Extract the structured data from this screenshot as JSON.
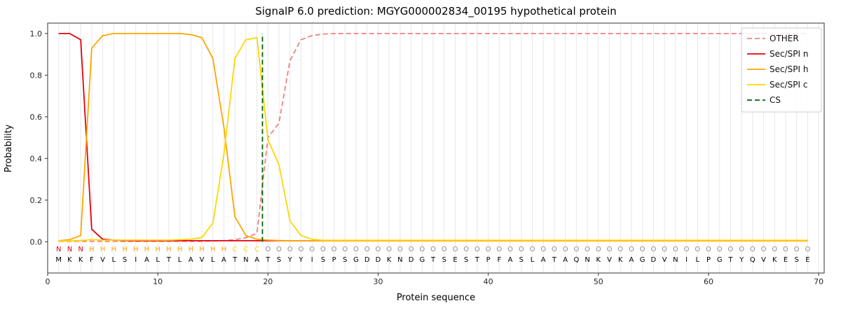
{
  "chart_data": {
    "type": "line",
    "title": "SignalP 6.0 prediction: MGYG000002834_00195 hypothetical protein",
    "xlabel": "Protein sequence",
    "ylabel": "Probability",
    "xlim": [
      0,
      70.5
    ],
    "ylim": [
      -0.15,
      1.05
    ],
    "xticks": [
      0,
      10,
      20,
      30,
      40,
      50,
      60,
      70
    ],
    "yticks": [
      0,
      0.2,
      0.4,
      0.6,
      0.8,
      1.0
    ],
    "grid": "vertical-per-residue",
    "grid_color": "#e7e7e7",
    "legend_position": "upper right",
    "x_start": 1,
    "series": [
      {
        "name": "OTHER",
        "color": "#f08080",
        "dash": true,
        "values": [
          0.002,
          0.002,
          0.002,
          0.002,
          0.002,
          0.002,
          0.002,
          0.002,
          0.002,
          0.002,
          0.002,
          0.002,
          0.002,
          0.002,
          0.004,
          0.006,
          0.01,
          0.02,
          0.04,
          0.5,
          0.57,
          0.87,
          0.97,
          0.99,
          0.997,
          1,
          1,
          1,
          1,
          1,
          1,
          1,
          1,
          1,
          1,
          1,
          1,
          1,
          1,
          1,
          1,
          1,
          1,
          1,
          1,
          1,
          1,
          1,
          1,
          1,
          1,
          1,
          1,
          1,
          1,
          1,
          1,
          1,
          1,
          1,
          1,
          1,
          1,
          1,
          1,
          1,
          1,
          1,
          1
        ]
      },
      {
        "name": "Sec/SPI n",
        "color": "#e8000b",
        "dash": false,
        "values": [
          1,
          1,
          0.97,
          0.06,
          0.012,
          0.008,
          0.006,
          0.005,
          0.005,
          0.005,
          0.005,
          0.005,
          0.005,
          0.005,
          0.005,
          0.005,
          0.005,
          0.005,
          0.005,
          0.005,
          0.005,
          0.005,
          0.005,
          0.005,
          0.005,
          0.005,
          0.005,
          0.005,
          0.005,
          0.005,
          0.005,
          0.005,
          0.005,
          0.005,
          0.005,
          0.005,
          0.005,
          0.005,
          0.005,
          0.005,
          0.005,
          0.005,
          0.005,
          0.005,
          0.005,
          0.005,
          0.005,
          0.005,
          0.005,
          0.005,
          0.005,
          0.005,
          0.005,
          0.005,
          0.005,
          0.005,
          0.005,
          0.005,
          0.005,
          0.005,
          0.005,
          0.005,
          0.005,
          0.005,
          0.005,
          0.005,
          0.005,
          0.005,
          0.005
        ]
      },
      {
        "name": "Sec/SPI h",
        "color": "#ffa500",
        "dash": false,
        "values": [
          0.005,
          0.01,
          0.03,
          0.93,
          0.99,
          1,
          1,
          1,
          1,
          1,
          1,
          1,
          0.995,
          0.98,
          0.88,
          0.55,
          0.12,
          0.03,
          0.012,
          0.008,
          0.006,
          0.005,
          0.005,
          0.005,
          0.005,
          0.005,
          0.005,
          0.005,
          0.005,
          0.005,
          0.005,
          0.005,
          0.005,
          0.005,
          0.005,
          0.005,
          0.005,
          0.005,
          0.005,
          0.005,
          0.005,
          0.005,
          0.005,
          0.005,
          0.005,
          0.005,
          0.005,
          0.005,
          0.005,
          0.005,
          0.005,
          0.005,
          0.005,
          0.005,
          0.005,
          0.005,
          0.005,
          0.005,
          0.005,
          0.005,
          0.005,
          0.005,
          0.005,
          0.005,
          0.005,
          0.005,
          0.005,
          0.005,
          0.005
        ]
      },
      {
        "name": "Sec/SPI c",
        "color": "#ffd700",
        "dash": false,
        "values": [
          0.004,
          0.004,
          0.006,
          0.01,
          0.008,
          0.008,
          0.008,
          0.008,
          0.008,
          0.008,
          0.008,
          0.01,
          0.012,
          0.02,
          0.09,
          0.42,
          0.88,
          0.97,
          0.98,
          0.49,
          0.37,
          0.1,
          0.03,
          0.012,
          0.007,
          0.007,
          0.007,
          0.007,
          0.007,
          0.007,
          0.007,
          0.007,
          0.007,
          0.007,
          0.007,
          0.007,
          0.007,
          0.007,
          0.007,
          0.007,
          0.007,
          0.007,
          0.007,
          0.007,
          0.007,
          0.007,
          0.007,
          0.007,
          0.007,
          0.007,
          0.007,
          0.007,
          0.007,
          0.007,
          0.007,
          0.007,
          0.007,
          0.007,
          0.007,
          0.007,
          0.007,
          0.007,
          0.007,
          0.007,
          0.007,
          0.007,
          0.007,
          0.007,
          0.007
        ]
      }
    ],
    "cs": {
      "label": "CS",
      "position": 19.5,
      "color": "#006400",
      "dash": true
    },
    "sequence": "MKKFVLSIALTLAVLATNATSYYISPSGDDKNDGTSESTPFASLATAQNKVKAGDVNILPGTYQVKESE",
    "region_labels": "NNNHHHHHHHHHHHHHCCCOOOOOOOOOOOOOOOOOOOOOOOOOOOOOOOOOOOOOOOOOOOOOOOOOO",
    "label_colors": {
      "N": "#e8000b",
      "H": "#ffa500",
      "C": "#ffd700",
      "O": "#8c8c8c"
    },
    "sequence_color": "#000000"
  }
}
